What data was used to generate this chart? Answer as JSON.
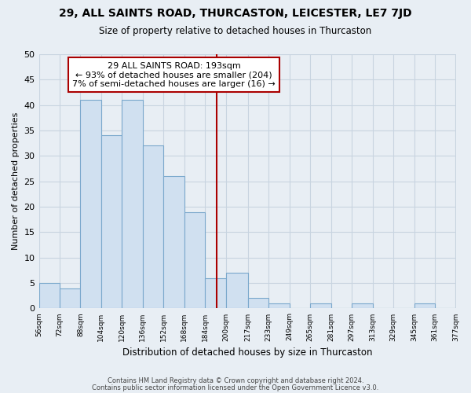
{
  "title": "29, ALL SAINTS ROAD, THURCASTON, LEICESTER, LE7 7JD",
  "subtitle": "Size of property relative to detached houses in Thurcaston",
  "xlabel": "Distribution of detached houses by size in Thurcaston",
  "ylabel": "Number of detached properties",
  "bar_lefts": [
    56,
    72,
    88,
    104,
    120,
    136,
    152,
    168,
    184,
    200,
    217,
    233,
    249,
    265,
    281,
    297,
    313,
    329,
    345,
    361
  ],
  "bar_widths": [
    16,
    16,
    16,
    16,
    16,
    16,
    16,
    16,
    16,
    17,
    16,
    16,
    16,
    16,
    16,
    16,
    16,
    16,
    16,
    16
  ],
  "bar_heights": [
    5,
    4,
    41,
    34,
    41,
    32,
    26,
    19,
    6,
    7,
    2,
    1,
    0,
    1,
    0,
    1,
    0,
    0,
    1,
    0
  ],
  "bar_color": "#d0e0f0",
  "bar_edgecolor": "#7aa8cc",
  "vline_x": 193,
  "vline_color": "#aa0000",
  "xlim": [
    56,
    377
  ],
  "ylim": [
    0,
    50
  ],
  "yticks": [
    0,
    5,
    10,
    15,
    20,
    25,
    30,
    35,
    40,
    45,
    50
  ],
  "tick_labels": [
    "56sqm",
    "72sqm",
    "88sqm",
    "104sqm",
    "120sqm",
    "136sqm",
    "152sqm",
    "168sqm",
    "184sqm",
    "200sqm",
    "217sqm",
    "233sqm",
    "249sqm",
    "265sqm",
    "281sqm",
    "297sqm",
    "313sqm",
    "329sqm",
    "345sqm",
    "361sqm",
    "377sqm"
  ],
  "tick_positions": [
    56,
    72,
    88,
    104,
    120,
    136,
    152,
    168,
    184,
    200,
    217,
    233,
    249,
    265,
    281,
    297,
    313,
    329,
    345,
    361,
    377
  ],
  "annotation_title": "29 ALL SAINTS ROAD: 193sqm",
  "annotation_line1": "← 93% of detached houses are smaller (204)",
  "annotation_line2": "7% of semi-detached houses are larger (16) →",
  "annotation_box_color": "#ffffff",
  "annotation_box_edgecolor": "#aa0000",
  "footnote1": "Contains HM Land Registry data © Crown copyright and database right 2024.",
  "footnote2": "Contains public sector information licensed under the Open Government Licence v3.0.",
  "background_color": "#e8eef4",
  "grid_color": "#c8d4e0"
}
